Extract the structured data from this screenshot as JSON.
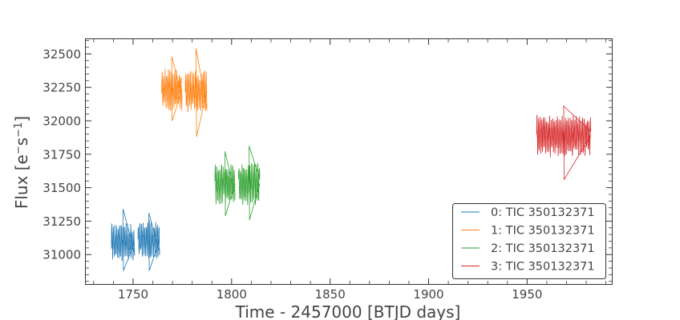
{
  "chart_data": {
    "type": "line",
    "title": "",
    "xlabel": "Time - 2457000 [BTJD days]",
    "ylabel": "Flux [e⁻s⁻¹]",
    "ylabel_parts": {
      "prefix": "Flux [e",
      "sup1": "−",
      "mid": "s",
      "sup2": "−1",
      "suffix": "]"
    },
    "xlim": [
      1726,
      1993
    ],
    "ylim": [
      30780,
      32610
    ],
    "xticks": [
      1750,
      1800,
      1850,
      1900,
      1950
    ],
    "yticks": [
      31000,
      31250,
      31500,
      31750,
      32000,
      32250,
      32500
    ],
    "grid": false,
    "legend_position": "lower-right",
    "series": [
      {
        "name": "0: TIC 350132371",
        "color": "#1f77b4",
        "segments": [
          {
            "x_start": 1739.0,
            "x_end": 1750.8,
            "center": 31090,
            "amplitude": 100,
            "y_min": 30880,
            "y_max": 31340
          },
          {
            "x_start": 1752.5,
            "x_end": 1763.5,
            "center": 31110,
            "amplitude": 100,
            "y_min": 30880,
            "y_max": 31310
          }
        ]
      },
      {
        "name": "1: TIC 350132371",
        "color": "#ff7f0e",
        "segments": [
          {
            "x_start": 1764.5,
            "x_end": 1774.8,
            "center": 32230,
            "amplitude": 110,
            "y_min": 32000,
            "y_max": 32480
          },
          {
            "x_start": 1776.5,
            "x_end": 1787.5,
            "center": 32220,
            "amplitude": 110,
            "y_min": 31880,
            "y_max": 32540
          }
        ]
      },
      {
        "name": "2: TIC 350132371",
        "color": "#2ca02c",
        "segments": [
          {
            "x_start": 1791.5,
            "x_end": 1801.8,
            "center": 31530,
            "amplitude": 110,
            "y_min": 31290,
            "y_max": 31770
          },
          {
            "x_start": 1803.5,
            "x_end": 1814.3,
            "center": 31530,
            "amplitude": 115,
            "y_min": 31260,
            "y_max": 31810
          }
        ]
      },
      {
        "name": "3: TIC 350132371",
        "color": "#d62728",
        "segments": [
          {
            "x_start": 1954.8,
            "x_end": 1982.3,
            "center": 31890,
            "amplitude": 110,
            "y_min": 31560,
            "y_max": 32110
          }
        ]
      }
    ]
  }
}
